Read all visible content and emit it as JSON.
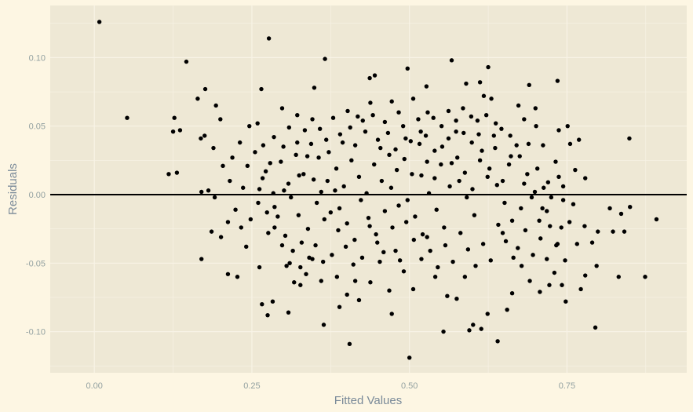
{
  "chart_data": {
    "type": "scatter",
    "title": "",
    "xlabel": "Fitted Values",
    "ylabel": "Residuals",
    "xlim": [
      -0.07,
      0.94
    ],
    "ylim": [
      -0.13,
      0.138
    ],
    "xticks": [
      {
        "value": 0.0,
        "label": "0.00"
      },
      {
        "value": 0.25,
        "label": "0.25"
      },
      {
        "value": 0.5,
        "label": "0.50"
      },
      {
        "value": 0.75,
        "label": "0.75"
      }
    ],
    "yticks": [
      {
        "value": -0.1,
        "label": "-0.10"
      },
      {
        "value": -0.05,
        "label": "-0.05"
      },
      {
        "value": 0.0,
        "label": "0.00"
      },
      {
        "value": 0.05,
        "label": "0.05"
      },
      {
        "value": 0.1,
        "label": "0.10"
      }
    ],
    "reference_line": {
      "y": 0.0,
      "color": "#000000"
    },
    "grid": true,
    "colors": {
      "panel": "#eee8d5",
      "background": "#fdf6e3",
      "grid": "#f8f3e6",
      "point": "#000000"
    },
    "points": [
      [
        0.008,
        0.126
      ],
      [
        0.052,
        0.056
      ],
      [
        0.146,
        0.097
      ],
      [
        0.277,
        0.114
      ],
      [
        0.366,
        0.099
      ],
      [
        0.497,
        0.092
      ],
      [
        0.567,
        0.098
      ],
      [
        0.625,
        0.093
      ],
      [
        0.735,
        0.083
      ],
      [
        0.164,
        0.07
      ],
      [
        0.176,
        0.077
      ],
      [
        0.265,
        0.077
      ],
      [
        0.349,
        0.078
      ],
      [
        0.437,
        0.085
      ],
      [
        0.445,
        0.087
      ],
      [
        0.527,
        0.079
      ],
      [
        0.59,
        0.081
      ],
      [
        0.612,
        0.082
      ],
      [
        0.69,
        0.08
      ],
      [
        0.127,
        0.056
      ],
      [
        0.136,
        0.047
      ],
      [
        0.125,
        0.046
      ],
      [
        0.118,
        0.015
      ],
      [
        0.131,
        0.016
      ],
      [
        0.169,
        0.041
      ],
      [
        0.175,
        0.043
      ],
      [
        0.193,
        0.065
      ],
      [
        0.2,
        0.055
      ],
      [
        0.189,
        0.034
      ],
      [
        0.204,
        0.021
      ],
      [
        0.215,
        0.01
      ],
      [
        0.181,
        0.003
      ],
      [
        0.17,
        0.002
      ],
      [
        0.186,
        -0.027
      ],
      [
        0.17,
        -0.047
      ],
      [
        0.212,
        -0.058
      ],
      [
        0.227,
        -0.06
      ],
      [
        0.233,
        -0.024
      ],
      [
        0.241,
        -0.038
      ],
      [
        0.246,
        0.05
      ],
      [
        0.259,
        0.052
      ],
      [
        0.268,
        0.036
      ],
      [
        0.285,
        0.042
      ],
      [
        0.298,
        0.063
      ],
      [
        0.309,
        0.049
      ],
      [
        0.322,
        0.058
      ],
      [
        0.338,
        0.028
      ],
      [
        0.325,
        0.014
      ],
      [
        0.301,
        0.003
      ],
      [
        0.286,
        -0.009
      ],
      [
        0.276,
        -0.028
      ],
      [
        0.262,
        -0.053
      ],
      [
        0.266,
        -0.08
      ],
      [
        0.283,
        -0.078
      ],
      [
        0.275,
        -0.088
      ],
      [
        0.308,
        -0.086
      ],
      [
        0.327,
        -0.066
      ],
      [
        0.346,
        -0.047
      ],
      [
        0.36,
        -0.063
      ],
      [
        0.364,
        -0.095
      ],
      [
        0.385,
        -0.06
      ],
      [
        0.389,
        -0.082
      ],
      [
        0.401,
        -0.073
      ],
      [
        0.405,
        -0.109
      ],
      [
        0.414,
        -0.063
      ],
      [
        0.42,
        -0.077
      ],
      [
        0.438,
        -0.064
      ],
      [
        0.453,
        -0.049
      ],
      [
        0.468,
        -0.07
      ],
      [
        0.472,
        -0.087
      ],
      [
        0.478,
        -0.041
      ],
      [
        0.491,
        -0.056
      ],
      [
        0.5,
        -0.119
      ],
      [
        0.506,
        -0.069
      ],
      [
        0.519,
        -0.047
      ],
      [
        0.528,
        -0.031
      ],
      [
        0.541,
        -0.06
      ],
      [
        0.554,
        -0.1
      ],
      [
        0.56,
        -0.074
      ],
      [
        0.575,
        -0.076
      ],
      [
        0.588,
        -0.06
      ],
      [
        0.595,
        -0.099
      ],
      [
        0.601,
        -0.095
      ],
      [
        0.614,
        -0.098
      ],
      [
        0.624,
        -0.087
      ],
      [
        0.64,
        -0.107
      ],
      [
        0.655,
        -0.084
      ],
      [
        0.663,
        -0.072
      ],
      [
        0.678,
        -0.052
      ],
      [
        0.691,
        -0.063
      ],
      [
        0.707,
        -0.071
      ],
      [
        0.722,
        -0.066
      ],
      [
        0.748,
        -0.078
      ],
      [
        0.772,
        -0.069
      ],
      [
        0.795,
        -0.097
      ],
      [
        0.797,
        -0.052
      ],
      [
        0.779,
        -0.059
      ],
      [
        0.832,
        -0.06
      ],
      [
        0.874,
        -0.06
      ],
      [
        0.892,
        -0.018
      ],
      [
        0.849,
        0.041
      ],
      [
        0.85,
        -0.009
      ],
      [
        0.836,
        -0.014
      ],
      [
        0.841,
        -0.027
      ],
      [
        0.823,
        -0.027
      ],
      [
        0.818,
        -0.01
      ],
      [
        0.799,
        -0.027
      ],
      [
        0.779,
        0.012
      ],
      [
        0.763,
        0.018
      ],
      [
        0.769,
        0.04
      ],
      [
        0.737,
        0.047
      ],
      [
        0.751,
        0.05
      ],
      [
        0.755,
        0.037
      ],
      [
        0.744,
        0.006
      ],
      [
        0.76,
        -0.007
      ],
      [
        0.741,
        -0.024
      ],
      [
        0.733,
        -0.037
      ],
      [
        0.718,
        -0.012
      ],
      [
        0.703,
        0.019
      ],
      [
        0.712,
        0.036
      ],
      [
        0.7,
        0.063
      ],
      [
        0.682,
        0.055
      ],
      [
        0.673,
        0.065
      ],
      [
        0.661,
        0.028
      ],
      [
        0.648,
        0.01
      ],
      [
        0.637,
        0.052
      ],
      [
        0.63,
        0.07
      ],
      [
        0.618,
        0.072
      ],
      [
        0.608,
        0.054
      ],
      [
        0.599,
        0.038
      ],
      [
        0.585,
        0.063
      ],
      [
        0.574,
        0.046
      ],
      [
        0.562,
        0.061
      ],
      [
        0.551,
        0.05
      ],
      [
        0.54,
        0.032
      ],
      [
        0.529,
        0.06
      ],
      [
        0.518,
        0.046
      ],
      [
        0.506,
        0.07
      ],
      [
        0.494,
        0.041
      ],
      [
        0.483,
        0.06
      ],
      [
        0.472,
        0.068
      ],
      [
        0.461,
        0.053
      ],
      [
        0.45,
        0.04
      ],
      [
        0.438,
        0.067
      ],
      [
        0.426,
        0.054
      ],
      [
        0.414,
        0.036
      ],
      [
        0.402,
        0.061
      ],
      [
        0.39,
        0.044
      ],
      [
        0.379,
        0.056
      ],
      [
        0.368,
        0.04
      ],
      [
        0.356,
        0.027
      ],
      [
        0.344,
        0.037
      ],
      [
        0.332,
        0.015
      ],
      [
        0.32,
        0.029
      ],
      [
        0.308,
        0.008
      ],
      [
        0.296,
        0.024
      ],
      [
        0.284,
        0.001
      ],
      [
        0.272,
        0.017
      ],
      [
        0.26,
        -0.006
      ],
      [
        0.248,
        -0.018
      ],
      [
        0.236,
        0.005
      ],
      [
        0.224,
        -0.011
      ],
      [
        0.212,
        -0.02
      ],
      [
        0.201,
        -0.031
      ],
      [
        0.191,
        -0.002
      ],
      [
        0.219,
        0.027
      ],
      [
        0.231,
        0.038
      ],
      [
        0.243,
        0.021
      ],
      [
        0.255,
        0.031
      ],
      [
        0.267,
        0.012
      ],
      [
        0.279,
        0.023
      ],
      [
        0.291,
        -0.016
      ],
      [
        0.303,
        -0.03
      ],
      [
        0.315,
        -0.041
      ],
      [
        0.327,
        -0.053
      ],
      [
        0.339,
        -0.025
      ],
      [
        0.351,
        -0.037
      ],
      [
        0.363,
        -0.049
      ],
      [
        0.375,
        -0.013
      ],
      [
        0.387,
        -0.026
      ],
      [
        0.399,
        -0.038
      ],
      [
        0.411,
        -0.051
      ],
      [
        0.423,
        -0.004
      ],
      [
        0.435,
        -0.017
      ],
      [
        0.447,
        -0.029
      ],
      [
        0.459,
        -0.042
      ],
      [
        0.471,
        0.005
      ],
      [
        0.483,
        -0.008
      ],
      [
        0.495,
        -0.02
      ],
      [
        0.507,
        -0.033
      ],
      [
        0.519,
        0.014
      ],
      [
        0.531,
        0.001
      ],
      [
        0.543,
        -0.011
      ],
      [
        0.555,
        -0.024
      ],
      [
        0.567,
        0.023
      ],
      [
        0.579,
        0.01
      ],
      [
        0.591,
        -0.002
      ],
      [
        0.603,
        -0.015
      ],
      [
        0.615,
        0.032
      ],
      [
        0.627,
        0.019
      ],
      [
        0.639,
        0.007
      ],
      [
        0.651,
        -0.006
      ],
      [
        0.663,
        -0.019
      ],
      [
        0.675,
        0.028
      ],
      [
        0.687,
        0.015
      ],
      [
        0.699,
        0.002
      ],
      [
        0.711,
        -0.01
      ],
      [
        0.723,
        -0.023
      ],
      [
        0.735,
        -0.036
      ],
      [
        0.747,
        -0.048
      ],
      [
        0.3,
        0.035
      ],
      [
        0.312,
        -0.002
      ],
      [
        0.324,
        -0.015
      ],
      [
        0.336,
        -0.058
      ],
      [
        0.348,
        0.011
      ],
      [
        0.36,
        0.002
      ],
      [
        0.372,
        0.031
      ],
      [
        0.384,
        0.019
      ],
      [
        0.396,
        0.006
      ],
      [
        0.408,
        0.025
      ],
      [
        0.42,
        0.013
      ],
      [
        0.432,
        0.001
      ],
      [
        0.444,
        0.022
      ],
      [
        0.456,
        0.01
      ],
      [
        0.468,
        0.029
      ],
      [
        0.48,
        0.018
      ],
      [
        0.492,
        0.026
      ],
      [
        0.504,
        0.015
      ],
      [
        0.516,
        0.037
      ],
      [
        0.528,
        0.024
      ],
      [
        0.54,
        0.012
      ],
      [
        0.552,
        0.035
      ],
      [
        0.564,
        0.006
      ],
      [
        0.576,
        0.027
      ],
      [
        0.588,
        0.016
      ],
      [
        0.6,
        0.004
      ],
      [
        0.612,
        0.025
      ],
      [
        0.624,
        0.013
      ],
      [
        0.636,
        0.034
      ],
      [
        0.648,
        -0.028
      ],
      [
        0.66,
        0.043
      ],
      [
        0.672,
        -0.039
      ],
      [
        0.684,
        -0.026
      ],
      [
        0.696,
        -0.044
      ],
      [
        0.708,
        -0.032
      ],
      [
        0.72,
        0.009
      ],
      [
        0.732,
        0.024
      ],
      [
        0.744,
        -0.004
      ],
      [
        0.305,
        -0.052
      ],
      [
        0.317,
        -0.064
      ],
      [
        0.329,
        -0.035
      ],
      [
        0.341,
        -0.046
      ],
      [
        0.353,
        -0.006
      ],
      [
        0.365,
        -0.018
      ],
      [
        0.377,
        -0.044
      ],
      [
        0.389,
        -0.01
      ],
      [
        0.401,
        -0.021
      ],
      [
        0.413,
        -0.033
      ],
      [
        0.425,
        -0.046
      ],
      [
        0.437,
        -0.023
      ],
      [
        0.449,
        -0.035
      ],
      [
        0.461,
        -0.012
      ],
      [
        0.473,
        -0.024
      ],
      [
        0.485,
        -0.048
      ],
      [
        0.497,
        -0.004
      ],
      [
        0.509,
        -0.016
      ],
      [
        0.521,
        -0.029
      ],
      [
        0.533,
        -0.041
      ],
      [
        0.545,
        -0.053
      ],
      [
        0.557,
        -0.037
      ],
      [
        0.569,
        -0.049
      ],
      [
        0.581,
        -0.028
      ],
      [
        0.593,
        -0.04
      ],
      [
        0.605,
        -0.052
      ],
      [
        0.617,
        -0.036
      ],
      [
        0.629,
        -0.048
      ],
      [
        0.641,
        -0.022
      ],
      [
        0.653,
        -0.034
      ],
      [
        0.665,
        -0.046
      ],
      [
        0.677,
        -0.01
      ],
      [
        0.689,
        0.037
      ],
      [
        0.701,
        0.05
      ],
      [
        0.713,
        0.005
      ],
      [
        0.725,
        -0.002
      ],
      [
        0.737,
        0.013
      ],
      [
        0.262,
        0.004
      ],
      [
        0.274,
        -0.013
      ],
      [
        0.286,
        -0.024
      ],
      [
        0.298,
        -0.037
      ],
      [
        0.31,
        -0.05
      ],
      [
        0.322,
        0.038
      ],
      [
        0.334,
        0.047
      ],
      [
        0.346,
        0.055
      ],
      [
        0.358,
        0.048
      ],
      [
        0.37,
        0.01
      ],
      [
        0.382,
        0.003
      ],
      [
        0.394,
        0.038
      ],
      [
        0.406,
        0.049
      ],
      [
        0.418,
        0.057
      ],
      [
        0.43,
        0.046
      ],
      [
        0.442,
        0.058
      ],
      [
        0.454,
        0.034
      ],
      [
        0.466,
        0.045
      ],
      [
        0.478,
        0.033
      ],
      [
        0.49,
        0.05
      ],
      [
        0.502,
        0.039
      ],
      [
        0.514,
        0.055
      ],
      [
        0.526,
        0.043
      ],
      [
        0.538,
        0.056
      ],
      [
        0.55,
        0.022
      ],
      [
        0.562,
        0.041
      ],
      [
        0.574,
        0.054
      ],
      [
        0.586,
        0.045
      ],
      [
        0.598,
        0.057
      ],
      [
        0.61,
        0.044
      ],
      [
        0.622,
        0.058
      ],
      [
        0.634,
        0.043
      ],
      [
        0.646,
        0.048
      ],
      [
        0.658,
        0.022
      ],
      [
        0.67,
        0.036
      ],
      [
        0.682,
        0.008
      ],
      [
        0.694,
        -0.002
      ],
      [
        0.706,
        -0.019
      ],
      [
        0.718,
        -0.047
      ],
      [
        0.73,
        -0.057
      ],
      [
        0.742,
        -0.066
      ],
      [
        0.754,
        -0.02
      ],
      [
        0.766,
        -0.036
      ],
      [
        0.778,
        -0.023
      ],
      [
        0.79,
        -0.035
      ]
    ]
  }
}
